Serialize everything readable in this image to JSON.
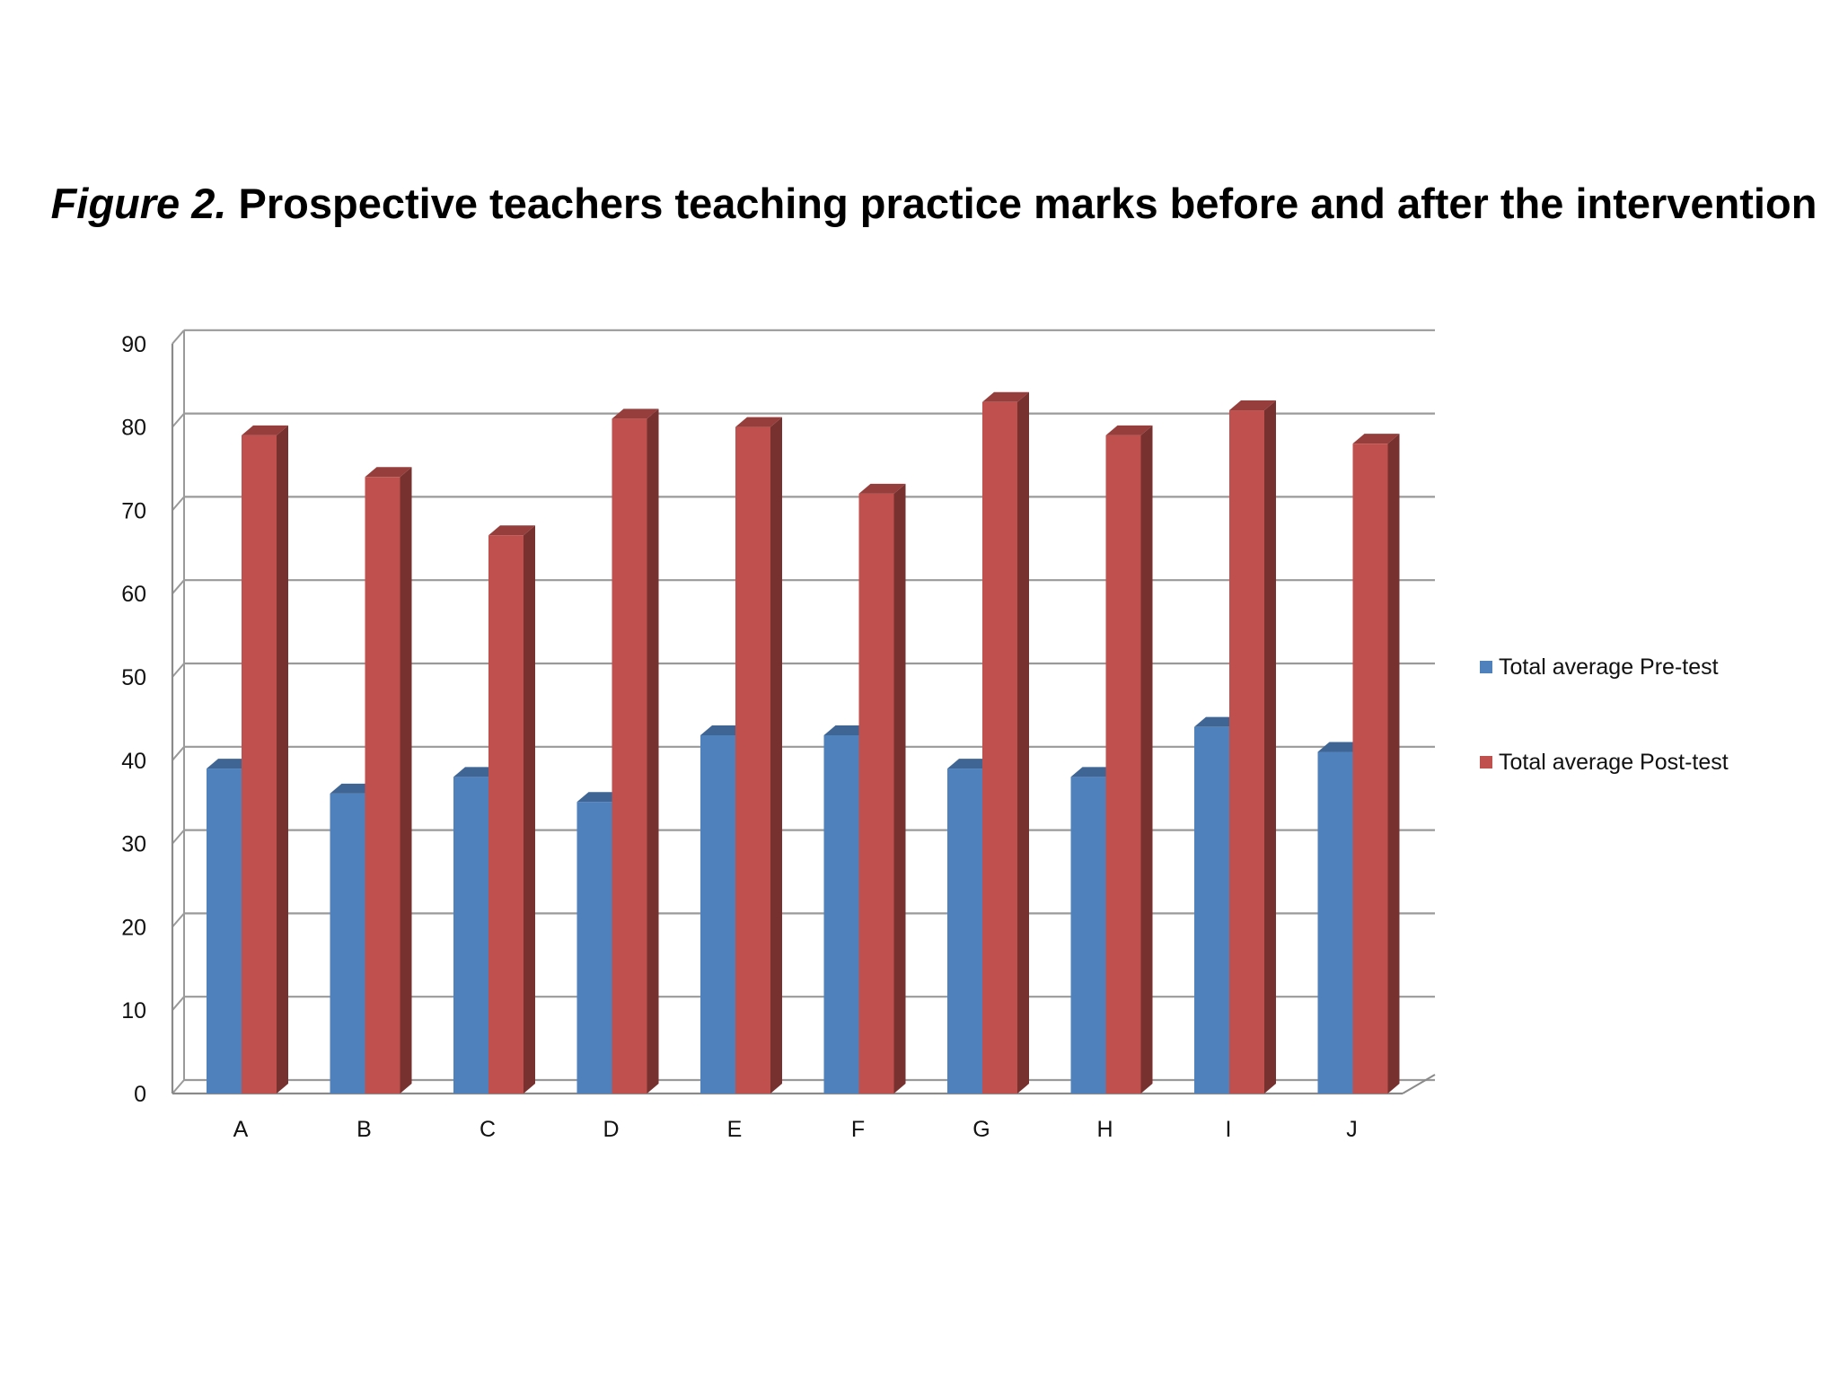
{
  "chart_data": {
    "type": "bar",
    "title_prefix": "Figure 2.",
    "title": "Prospective teachers teaching practice marks before and after the intervention",
    "categories": [
      "A",
      "B",
      "C",
      "D",
      "E",
      "F",
      "G",
      "H",
      "I",
      "J"
    ],
    "series": [
      {
        "name": "Total average Pre-test",
        "color": "#4f81bd",
        "values": [
          39,
          36,
          38,
          35,
          43,
          43,
          39,
          38,
          44,
          41
        ]
      },
      {
        "name": "Total average Post-test",
        "color": "#c0504d",
        "values": [
          79,
          74,
          67,
          81,
          80,
          72,
          83,
          79,
          82,
          78
        ]
      }
    ],
    "ylim": [
      0,
      90
    ],
    "yticks": [
      0,
      10,
      20,
      30,
      40,
      50,
      60,
      70,
      80,
      90
    ],
    "grid": true,
    "legend_position": "right",
    "style": "3d-column"
  }
}
